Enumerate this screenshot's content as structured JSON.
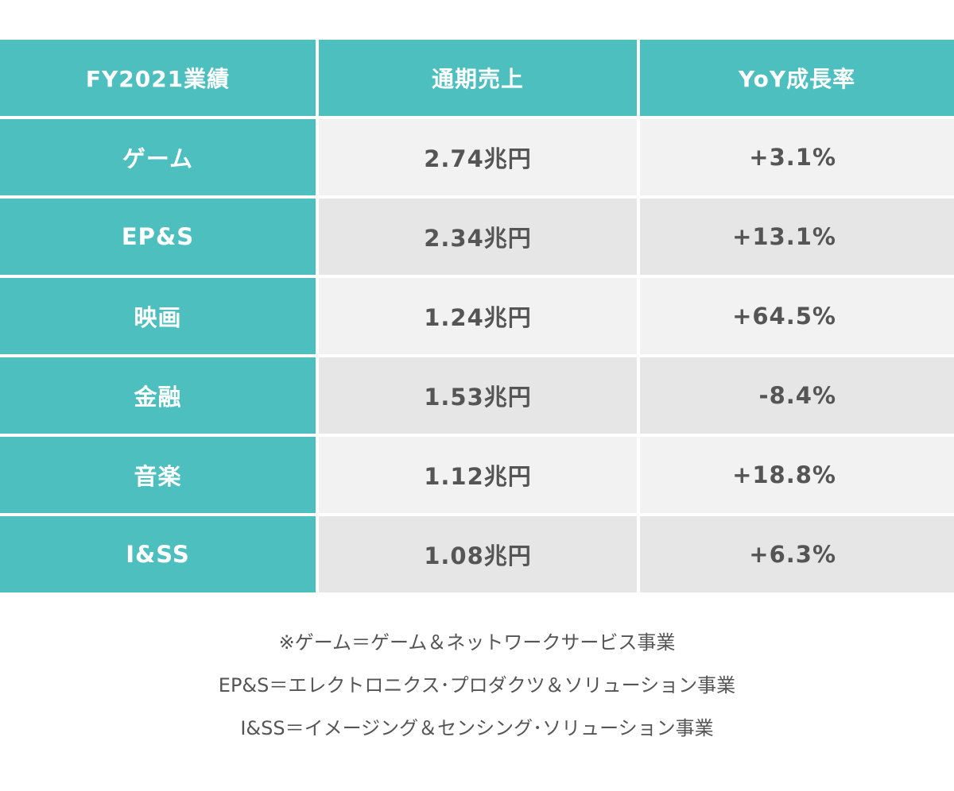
{
  "table": {
    "headers": [
      "FY2021業績",
      "通期売上",
      "YoY成長率"
    ],
    "rows": [
      {
        "segment": "ゲーム",
        "sales": "2.74兆円",
        "yoy": "+3.1%"
      },
      {
        "segment": "EP&S",
        "sales": "2.34兆円",
        "yoy": "+13.1%"
      },
      {
        "segment": "映画",
        "sales": "1.24兆円",
        "yoy": "+64.5%"
      },
      {
        "segment": "金融",
        "sales": "1.53兆円",
        "yoy": "-8.4%"
      },
      {
        "segment": "音楽",
        "sales": "1.12兆円",
        "yoy": "+18.8%"
      },
      {
        "segment": "I&SS",
        "sales": "1.08兆円",
        "yoy": "+6.3%"
      }
    ]
  },
  "notes": [
    "※ゲーム＝ゲーム＆ネットワークサービス事業",
    "EP&S＝エレクトロニクス･プロダクツ＆ソリューション事業",
    "I&SS＝イメージング＆センシング･ソリューション事業"
  ],
  "colors": {
    "accent": "#4dbfbf",
    "row_light": "#f2f2f2",
    "row_dark": "#e6e6e6",
    "text": "#555555"
  }
}
